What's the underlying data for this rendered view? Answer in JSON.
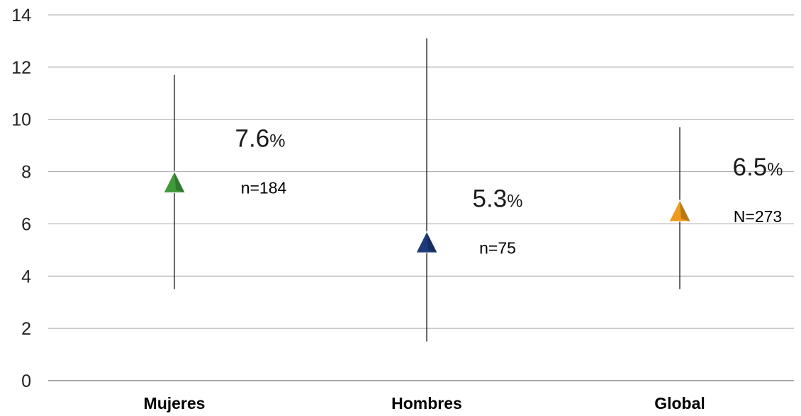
{
  "chart_data": {
    "type": "scatter",
    "title": "",
    "xlabel": "",
    "ylabel": "",
    "ylim": [
      0,
      14
    ],
    "yticks": [
      0,
      2,
      4,
      6,
      8,
      10,
      12,
      14
    ],
    "grid": true,
    "categories": [
      "Mujeres",
      "Hombres",
      "Global"
    ],
    "points": [
      {
        "category": "Mujeres",
        "value": 7.6,
        "lower": 3.5,
        "upper": 11.7,
        "value_label": "7.6",
        "unit": "%",
        "n_label": "n=184",
        "color": "#3f9a3a",
        "marker": "triangle"
      },
      {
        "category": "Hombres",
        "value": 5.3,
        "lower": 1.5,
        "upper": 13.1,
        "value_label": "5.3",
        "unit": "%",
        "n_label": "n=75",
        "color": "#1e3a7a",
        "marker": "triangle"
      },
      {
        "category": "Global",
        "value": 6.5,
        "lower": 3.5,
        "upper": 9.7,
        "value_label": "6.5",
        "unit": "%",
        "n_label": "N=273",
        "color": "#ee9a1c",
        "marker": "triangle"
      }
    ]
  }
}
